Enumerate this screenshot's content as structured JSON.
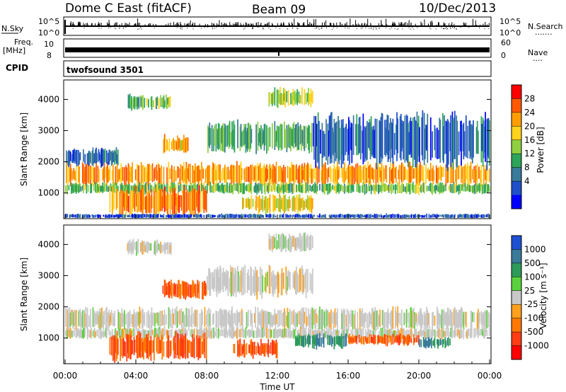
{
  "header": {
    "radar_title": "Dome C East (fitACF)",
    "beam": "Beam 09",
    "date": "10/Dec/2013"
  },
  "nsky_panel": {
    "left_label": "N.Sky",
    "right_label": "N.Search",
    "right_label_dots": "·······",
    "tick_labels_left": [
      "10^5",
      "10^0"
    ],
    "tick_labels_right": [
      "10^5",
      "10^0"
    ]
  },
  "freq_panel": {
    "left_label_line1": "Freq.",
    "left_label_line2": "[MHz]",
    "right_label": "Nave",
    "right_label_dots": "····",
    "tick_labels_left": [
      "10",
      "8"
    ],
    "tick_labels_right": [
      "60",
      "0"
    ]
  },
  "cpid_panel": {
    "label": "CPID",
    "program": "twofsound 3501"
  },
  "chart_data": [
    {
      "type": "heatmap",
      "panel": "power",
      "ylabel": "Slant Range [km]",
      "yticks": [
        1000,
        2000,
        3000,
        4000
      ],
      "ylim": [
        200,
        4600
      ],
      "xlim": [
        0,
        24
      ],
      "colorbar": {
        "label": "Power [dB]",
        "ticks": [
          "28",
          "24",
          "20",
          "16",
          "12",
          "8",
          "4"
        ],
        "colors": [
          "#ff0000",
          "#ff5a00",
          "#ff9d00",
          "#ffd21e",
          "#90d040",
          "#2ea45a",
          "#3a7a9a",
          "#1e50c8",
          "#0000ff"
        ]
      },
      "echo_bands": [
        {
          "start": 0,
          "end": 24,
          "lo": 1300,
          "hi": 1900,
          "level": 24
        },
        {
          "start": 0,
          "end": 24,
          "lo": 1000,
          "hi": 1300,
          "level": 14
        },
        {
          "start": 2.5,
          "end": 8,
          "lo": 350,
          "hi": 1100,
          "level": 26
        },
        {
          "start": 10,
          "end": 14,
          "lo": 400,
          "hi": 900,
          "level": 20
        },
        {
          "start": 5.5,
          "end": 7,
          "lo": 2300,
          "hi": 2800,
          "level": 22
        },
        {
          "start": 8,
          "end": 14,
          "lo": 2400,
          "hi": 3200,
          "level": 12
        },
        {
          "start": 3.5,
          "end": 6,
          "lo": 3700,
          "hi": 4100,
          "level": 14
        },
        {
          "start": 11.5,
          "end": 14,
          "lo": 3800,
          "hi": 4300,
          "level": 16
        },
        {
          "start": 14,
          "end": 24,
          "lo": 2000,
          "hi": 3400,
          "level": 6
        },
        {
          "start": 0,
          "end": 3,
          "lo": 1900,
          "hi": 2400,
          "level": 6
        },
        {
          "start": 0,
          "end": 24,
          "lo": 200,
          "hi": 320,
          "level": 5
        }
      ]
    },
    {
      "type": "heatmap",
      "panel": "velocity",
      "ylabel": "Slant Range [km]",
      "yticks": [
        1000,
        2000,
        3000,
        4000
      ],
      "ylim": [
        200,
        4600
      ],
      "xlim": [
        0,
        24
      ],
      "xticks": [
        "00:00",
        "04:00",
        "08:00",
        "12:00",
        "16:00",
        "20:00",
        "00:00"
      ],
      "xlabel": "Time UT",
      "colorbar": {
        "label": "Velocity [m s⁻¹]",
        "ticks": [
          "1000",
          "500",
          "100",
          "25",
          "-25",
          "-100",
          "-500",
          "-1000"
        ],
        "colors": [
          "#1e50d2",
          "#3a7a9a",
          "#2e9a5a",
          "#5ad23c",
          "#c8c8c8",
          "#ffa01e",
          "#ff7800",
          "#ff3c14",
          "#ff0000"
        ]
      },
      "echo_bands": [
        {
          "start": 0,
          "end": 24,
          "lo": 1300,
          "hi": 1900,
          "velocity": 0
        },
        {
          "start": 0,
          "end": 24,
          "lo": 1000,
          "hi": 1300,
          "velocity": 0
        },
        {
          "start": 2.5,
          "end": 8,
          "lo": 350,
          "hi": 1100,
          "velocity": -300
        },
        {
          "start": 9.5,
          "end": 12,
          "lo": 400,
          "hi": 900,
          "velocity": -300
        },
        {
          "start": 13,
          "end": 16,
          "lo": 700,
          "hi": 1100,
          "velocity": 300
        },
        {
          "start": 16,
          "end": 20,
          "lo": 800,
          "hi": 1100,
          "velocity": -300
        },
        {
          "start": 20,
          "end": 22,
          "lo": 700,
          "hi": 1000,
          "velocity": 300
        },
        {
          "start": 5.5,
          "end": 8,
          "lo": 2300,
          "hi": 2800,
          "velocity": -300
        },
        {
          "start": 8,
          "end": 14,
          "lo": 2400,
          "hi": 3200,
          "velocity": 0
        },
        {
          "start": 11.5,
          "end": 14,
          "lo": 3800,
          "hi": 4300,
          "velocity": 0
        },
        {
          "start": 3.5,
          "end": 6,
          "lo": 3700,
          "hi": 4100,
          "velocity": 0
        }
      ]
    }
  ]
}
